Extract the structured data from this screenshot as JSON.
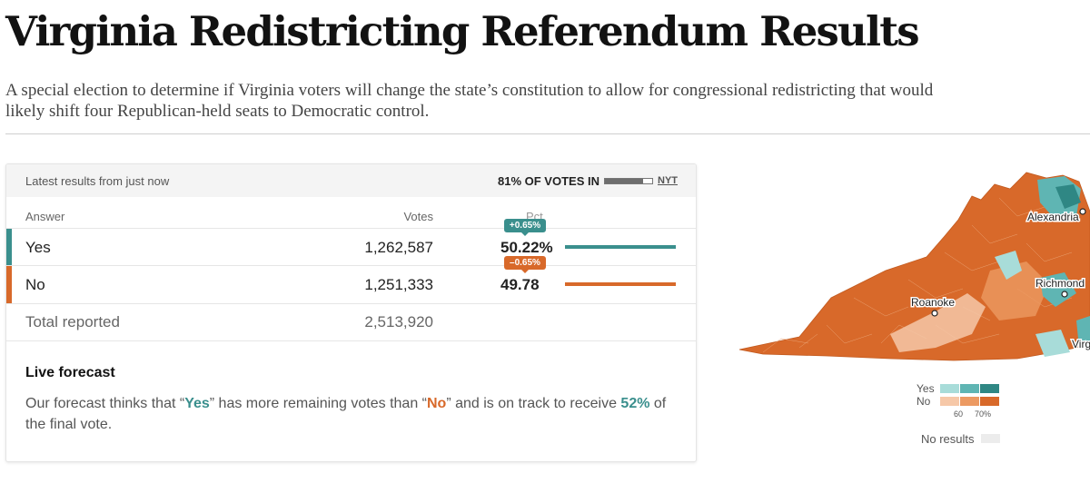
{
  "header": {
    "title": "Virginia Redistricting Referendum Results",
    "subtitle": "A special election to determine if Virginia voters will change the state’s constitution to allow for congressional redistricting that would likely shift four Republican-held seats to Democratic control."
  },
  "results": {
    "latest_label": "Latest results from just now",
    "votes_in_label": "81% OF VOTES IN",
    "votes_in_fraction": 0.81,
    "source": "NYT",
    "columns": {
      "answer": "Answer",
      "votes": "Votes",
      "pct": "Pct."
    },
    "rows": [
      {
        "answer": "Yes",
        "votes": "1,262,587",
        "pct": "50.22%",
        "change": "+0.65%",
        "color": "#3a8f8d"
      },
      {
        "answer": "No",
        "votes": "1,251,333",
        "pct": "49.78",
        "change": "–0.65%",
        "color": "#d8692a"
      }
    ],
    "total": {
      "label": "Total reported",
      "votes": "2,513,920"
    }
  },
  "forecast": {
    "title": "Live forecast",
    "text_1": "Our forecast thinks that “",
    "yes": "Yes",
    "text_2": "” has more remaining votes than “",
    "no": "No",
    "text_3": "” and is on track to receive ",
    "pct": "52%",
    "text_4": " of the final vote."
  },
  "map": {
    "cities": [
      "Alexandria",
      "Richmond",
      "Roanoke",
      "Virg"
    ],
    "legend": {
      "yes_label": "Yes",
      "no_label": "No",
      "tick_60": "60",
      "tick_70": "70%",
      "yes_colors": [
        "#a8dcd9",
        "#5fb5b3",
        "#2f8784"
      ],
      "no_colors": [
        "#f6c8a8",
        "#ec9a62",
        "#d8692a"
      ],
      "no_results_label": "No results",
      "no_results_color": "#ececec"
    }
  }
}
